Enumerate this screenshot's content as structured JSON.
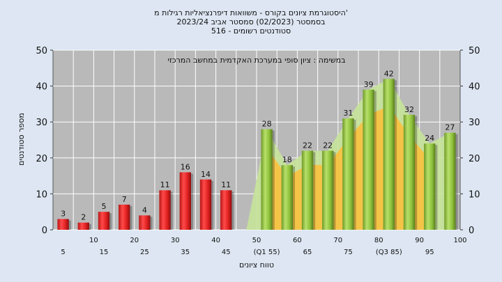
{
  "title_lines": [
    "היסטוגרמת ציונים בקורס - משוואות דיפרנציאליות רגילות מ'",
    "בסמסטר  (02/2023)  סמסטר אביב 2023/24",
    "516 - סטודנטים רשומים"
  ],
  "chart_data": {
    "type": "bar",
    "annotation": "במשימה : ציון סופי במערכת האקדמית במחשב המרכזי",
    "xlabel": "טווח ציונים",
    "ylabel": "מספר סטודנטים",
    "ylim": [
      0,
      50
    ],
    "yticks": [
      0,
      10,
      20,
      30,
      40,
      50
    ],
    "grid": true,
    "categories": [
      "5",
      "10",
      "15",
      "20",
      "25",
      "30",
      "35",
      "40",
      "45",
      "50",
      "(Q1 55)",
      "60",
      "65",
      "70",
      "75",
      "80",
      "(Q3 85)",
      "90",
      "95",
      "100"
    ],
    "values": [
      3,
      2,
      5,
      7,
      4,
      11,
      16,
      14,
      11,
      null,
      28,
      18,
      22,
      22,
      31,
      39,
      42,
      32,
      24,
      27
    ],
    "bar_colors": [
      "red",
      "red",
      "red",
      "red",
      "red",
      "red",
      "red",
      "red",
      "red",
      null,
      "green",
      "green",
      "green",
      "green",
      "green",
      "green",
      "green",
      "green",
      "green",
      "green"
    ],
    "colors": {
      "red_bar": "#e02020",
      "green_bar": "#8fc23c",
      "area_light": "#c7e39a",
      "area_yellow": "#f5c242",
      "plot_bg": "#b9b9b9",
      "grid": "#ffffff"
    }
  }
}
